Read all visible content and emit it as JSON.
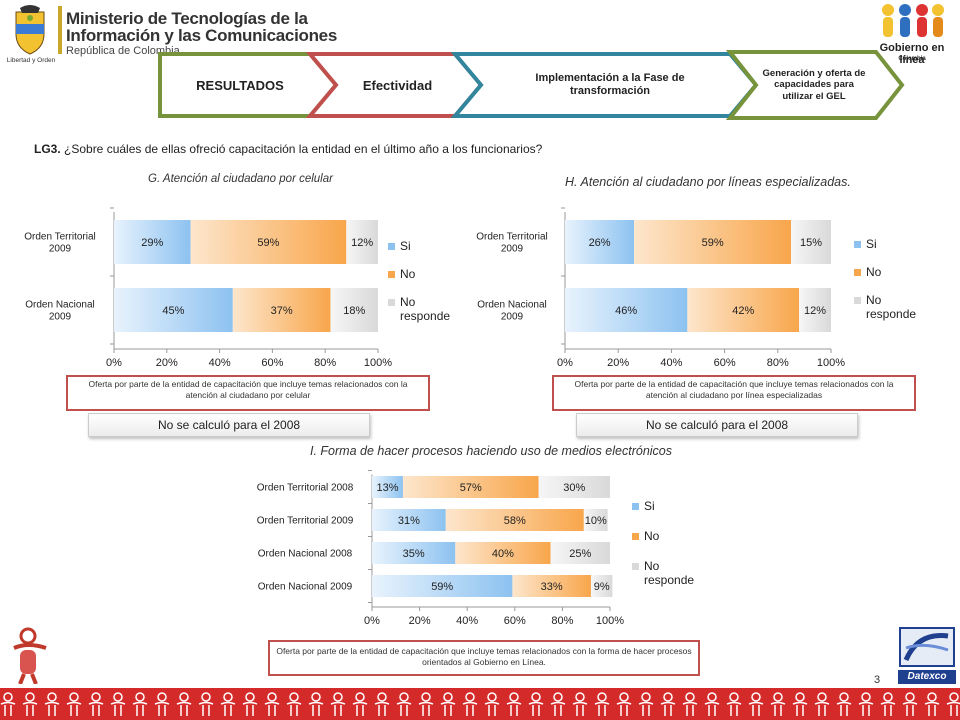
{
  "header": {
    "ministry_line1": "Ministerio de Tecnologías de la",
    "ministry_line2": "Información y las Comunicaciones",
    "ministry_line3": "República de Colombia",
    "motto": "Libertad y Orden",
    "gel_logo_line1": "Gobierno en línea",
    "gel_logo_line2": "Colombia"
  },
  "stages": [
    {
      "label": "RESULTADOS",
      "color": "#77933c"
    },
    {
      "label": "Efectividad",
      "color": "#c0504d"
    },
    {
      "label": "Implementación  a la Fase de transformación",
      "color": "#31859c"
    },
    {
      "label": "Generación y oferta de capacidades para utilizar el GEL",
      "color": "#77933c"
    }
  ],
  "question": {
    "code": "LG3.",
    "text": " ¿Sobre cuáles de ellas ofreció capacitación la entidad en el último año a los  funcionarios?"
  },
  "legend": {
    "si": "Si",
    "no": "No",
    "nr": "No responde"
  },
  "colors": {
    "si": "#8dc2f0",
    "no": "#f8a64b",
    "nr": "#d9d9d9",
    "accent_red": "#c0504d"
  },
  "chart_data": [
    {
      "type": "bar",
      "orientation": "horizontal-stacked-100",
      "title": "G. Atención al ciudadano por celular",
      "categories": [
        "Orden Territorial 2009",
        "Orden Nacional 2009"
      ],
      "series": [
        {
          "name": "Si",
          "values": [
            29,
            45
          ],
          "labels": [
            "29%",
            "45%"
          ]
        },
        {
          "name": "No",
          "values": [
            59,
            37
          ],
          "labels": [
            "59%",
            "37%"
          ]
        },
        {
          "name": "No responde",
          "values": [
            12,
            18
          ],
          "labels": [
            "12%",
            "18%"
          ]
        }
      ],
      "xlim": [
        0,
        100
      ],
      "ticks": [
        "0%",
        "20%",
        "40%",
        "60%",
        "80%",
        "100%"
      ],
      "note": "Oferta por parte de la entidad de capacitación que incluye temas relacionados con la atención al ciudadano por celular",
      "calc_note": "No se calculó para el 2008"
    },
    {
      "type": "bar",
      "orientation": "horizontal-stacked-100",
      "title": "H. Atención al ciudadano por líneas especializadas.",
      "categories": [
        "Orden Territorial 2009",
        "Orden Nacional 2009"
      ],
      "series": [
        {
          "name": "Si",
          "values": [
            26,
            46
          ],
          "labels": [
            "26%",
            "46%"
          ]
        },
        {
          "name": "No",
          "values": [
            59,
            42
          ],
          "labels": [
            "59%",
            "42%"
          ]
        },
        {
          "name": "No responde",
          "values": [
            15,
            12
          ],
          "labels": [
            "15%",
            "12%"
          ]
        }
      ],
      "xlim": [
        0,
        100
      ],
      "ticks": [
        "0%",
        "20%",
        "40%",
        "60%",
        "80%",
        "100%"
      ],
      "note": "Oferta por parte de la entidad de capacitación que incluye temas relacionados con la atención al ciudadano por línea especializadas",
      "calc_note": "No se calculó para el 2008"
    },
    {
      "type": "bar",
      "orientation": "horizontal-stacked-100",
      "title": "I. Forma de hacer procesos haciendo uso de medios electrónicos",
      "categories": [
        "Orden Territorial 2008",
        "Orden Territorial 2009",
        "Orden Nacional 2008",
        "Orden Nacional 2009"
      ],
      "series": [
        {
          "name": "Si",
          "values": [
            13,
            31,
            35,
            59
          ],
          "labels": [
            "13%",
            "31%",
            "35%",
            "59%"
          ]
        },
        {
          "name": "No",
          "values": [
            57,
            58,
            40,
            33
          ],
          "labels": [
            "57%",
            "58%",
            "40%",
            "33%"
          ]
        },
        {
          "name": "No responde",
          "values": [
            30,
            10,
            25,
            9
          ],
          "labels": [
            "30%",
            "10%",
            "25%",
            "9%"
          ]
        }
      ],
      "xlim": [
        0,
        100
      ],
      "ticks": [
        "0%",
        "20%",
        "40%",
        "60%",
        "80%",
        "100%"
      ],
      "note": "Oferta por parte de la entidad de capacitación que incluye temas relacionados con la forma de hacer procesos orientados al Gobierno en Línea."
    }
  ],
  "page_number": "3",
  "footer_logo": "Datexco"
}
